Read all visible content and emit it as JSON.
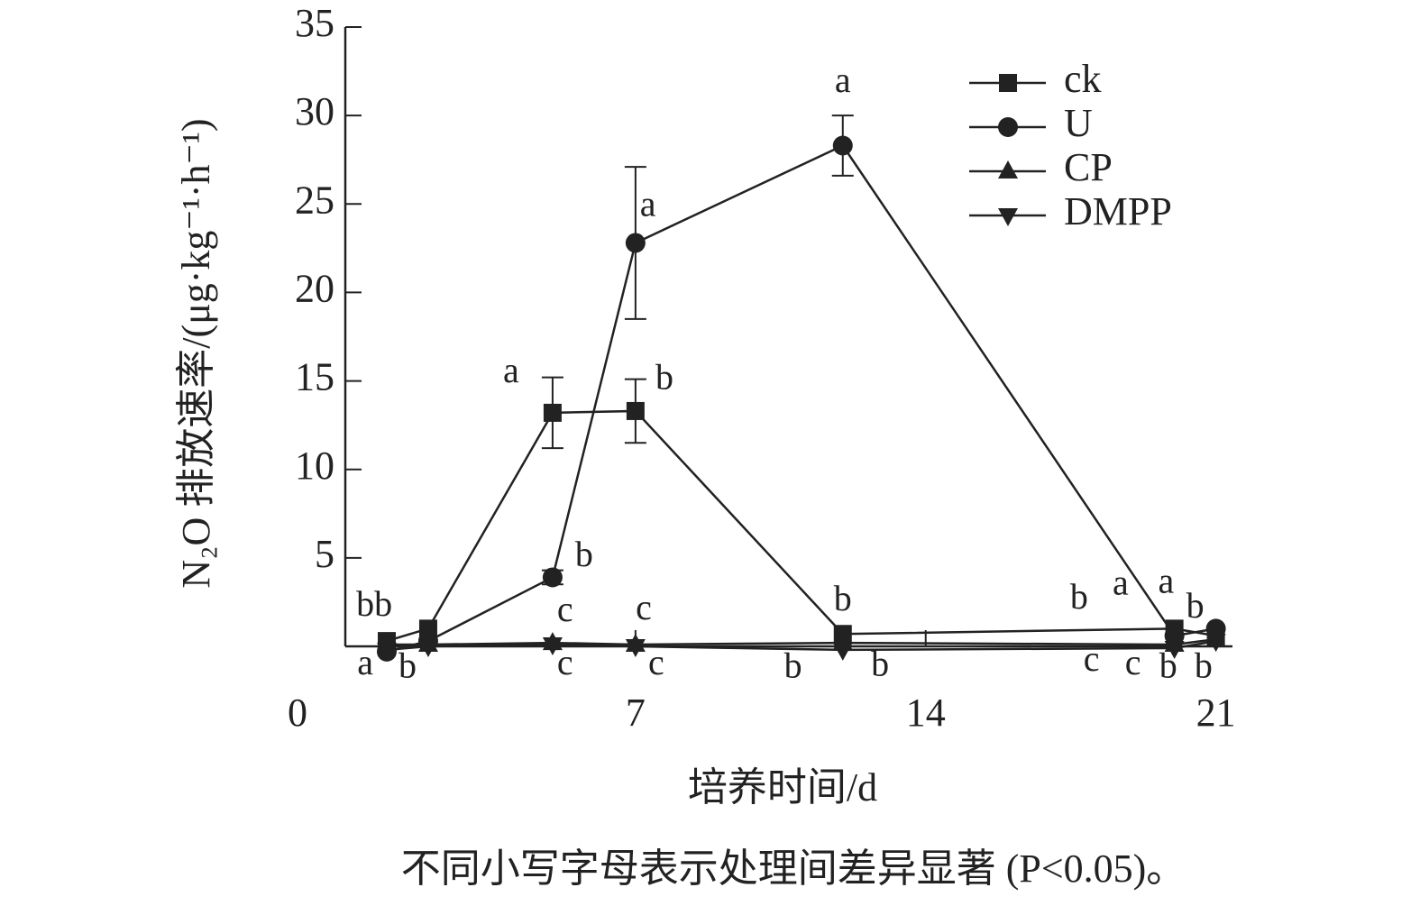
{
  "chart_data": {
    "type": "line",
    "x_label": "培养时间/d",
    "y_label": "N₂O 排放速率/(μg·kg⁻¹·h⁻¹)",
    "caption": "不同小写字母表示处理间差异显著 (P<0.05)。",
    "xlim": [
      0,
      21.4
    ],
    "xticks": [
      0,
      7,
      14,
      21
    ],
    "ylim": [
      0,
      35
    ],
    "yticks": [
      5,
      10,
      15,
      20,
      25,
      30,
      35
    ],
    "x": [
      1,
      2,
      5,
      7,
      12,
      20,
      21
    ],
    "legend": "upper right",
    "series": [
      {
        "name": "ck",
        "color": "#222222",
        "marker": "square",
        "values": [
          0.3,
          1.0,
          13.2,
          13.3,
          0.7,
          1.0,
          0.6
        ],
        "errors": [
          null,
          null,
          2.0,
          1.8,
          null,
          null,
          null
        ]
      },
      {
        "name": "U",
        "color": "#222222",
        "marker": "circle",
        "values": [
          -0.3,
          0.3,
          3.9,
          22.8,
          28.3,
          0.6,
          1.0
        ],
        "errors": [
          null,
          null,
          0.4,
          4.3,
          1.7,
          null,
          null
        ]
      },
      {
        "name": "CP",
        "color": "#222222",
        "marker": "triangle-up",
        "values": [
          0.1,
          0.1,
          0.2,
          0.1,
          0.2,
          0.1,
          0.4
        ],
        "errors": [
          null,
          null,
          null,
          null,
          null,
          null,
          null
        ]
      },
      {
        "name": "DMPP",
        "color": "#222222",
        "marker": "triangle-down",
        "values": [
          -0.2,
          0.0,
          0.1,
          0.0,
          -0.2,
          -0.1,
          0.3
        ],
        "errors": [
          null,
          null,
          null,
          null,
          null,
          null,
          null
        ]
      }
    ],
    "annotations": [
      {
        "text": "bb",
        "x": 0.7,
        "y": 2.2
      },
      {
        "text": "a",
        "x": 0.48,
        "y": -1.1
      },
      {
        "text": "b",
        "x": 1.5,
        "y": -1.3
      },
      {
        "text": "a",
        "x": 4.0,
        "y": 15.4
      },
      {
        "text": "b",
        "x": 5.76,
        "y": 5.0
      },
      {
        "text": "c",
        "x": 5.3,
        "y": 1.9
      },
      {
        "text": "c",
        "x": 5.3,
        "y": -1.1
      },
      {
        "text": "a",
        "x": 7.3,
        "y": 24.8
      },
      {
        "text": "b",
        "x": 7.7,
        "y": 15.0
      },
      {
        "text": "c",
        "x": 7.2,
        "y": 2.0
      },
      {
        "text": "c",
        "x": 7.5,
        "y": -1.1
      },
      {
        "text": "a",
        "x": 12.0,
        "y": 31.8
      },
      {
        "text": "b",
        "x": 12.0,
        "y": 2.5
      },
      {
        "text": "b",
        "x": 10.8,
        "y": -1.3
      },
      {
        "text": "b",
        "x": 12.9,
        "y": -1.2
      },
      {
        "text": "b",
        "x": 17.7,
        "y": 2.6
      },
      {
        "text": "a",
        "x": 18.7,
        "y": 3.4
      },
      {
        "text": "a",
        "x": 19.8,
        "y": 3.5
      },
      {
        "text": "b",
        "x": 20.5,
        "y": 2.1
      },
      {
        "text": "c",
        "x": 18.0,
        "y": -0.9
      },
      {
        "text": "c",
        "x": 19.0,
        "y": -1.1
      },
      {
        "text": "b",
        "x": 19.85,
        "y": -1.3
      },
      {
        "text": "b",
        "x": 20.7,
        "y": -1.3
      }
    ]
  }
}
